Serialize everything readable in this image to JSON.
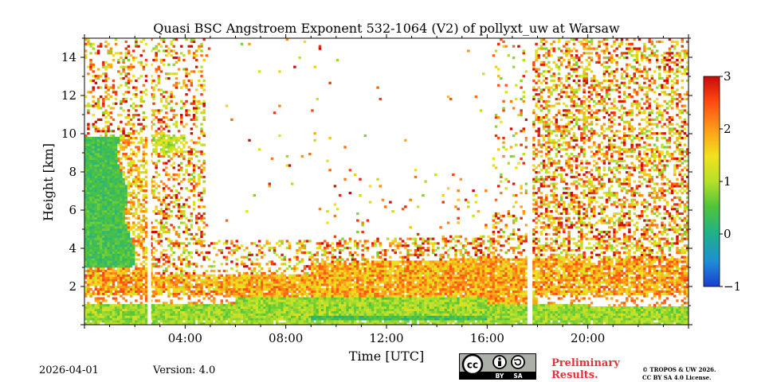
{
  "chart_data": {
    "type": "heatmap",
    "title": "Quasi BSC Angstroem Exponent 532-1064 (V2) of pollyxt_uw at Warsaw",
    "xlabel": "Time [UTC]",
    "ylabel": "Height [km]",
    "xlim_hours": [
      0,
      24
    ],
    "ylim_km": [
      0,
      15
    ],
    "x_ticks": [
      {
        "hour": 4,
        "label": "04:00"
      },
      {
        "hour": 8,
        "label": "08:00"
      },
      {
        "hour": 12,
        "label": "12:00"
      },
      {
        "hour": 16,
        "label": "16:00"
      },
      {
        "hour": 20,
        "label": "20:00"
      }
    ],
    "y_ticks": [
      {
        "km": 2,
        "label": "2"
      },
      {
        "km": 4,
        "label": "4"
      },
      {
        "km": 6,
        "label": "6"
      },
      {
        "km": 8,
        "label": "8"
      },
      {
        "km": 10,
        "label": "10"
      },
      {
        "km": 12,
        "label": "12"
      },
      {
        "km": 14,
        "label": "14"
      }
    ],
    "colorbar": {
      "min": -1,
      "max": 3,
      "ticks": [
        {
          "value": 3,
          "label": "3"
        },
        {
          "value": 2,
          "label": "2"
        },
        {
          "value": 1,
          "label": "1"
        },
        {
          "value": 0,
          "label": "0"
        },
        {
          "value": -1,
          "label": "−1"
        }
      ]
    },
    "data_gaps_hours": [
      [
        2.5,
        2.65
      ],
      [
        17.6,
        17.75
      ]
    ],
    "layers": [
      {
        "name": "near-surface layer",
        "t_start": 0,
        "t_end": 24,
        "bottom_km": 0.2,
        "top_km": 1.3,
        "value": 0.9
      },
      {
        "name": "boundary layer top",
        "t_start": 0,
        "t_end": 24,
        "bottom_km": 1.6,
        "top_km": 3.4,
        "value": 1.8
      },
      {
        "name": "elevated aerosol layer",
        "t_start": 0,
        "t_end": 2.5,
        "bottom_km": 3.0,
        "top_km": 9.8,
        "value": 0.4
      },
      {
        "name": "cloud return",
        "t_start": 2.7,
        "t_end": 4.0,
        "bottom_km": 9.0,
        "top_km": 10.0,
        "value": 1.1
      }
    ]
  },
  "footer": {
    "date": "2026-04-01",
    "version": "Version: 4.0",
    "cc_labels": [
      "cc",
      "BY",
      "SA"
    ],
    "preliminary": [
      "Preliminary",
      "Results."
    ],
    "copyright": [
      "© TROPOS & UW 2026.",
      "CC BY SA 4.0 License."
    ]
  },
  "colors": {
    "preliminary": "#e8303a",
    "gap": "#ffffff",
    "badge_bg": "#aab0a8"
  }
}
